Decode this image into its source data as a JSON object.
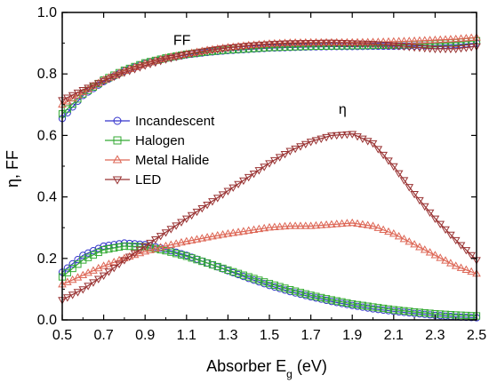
{
  "chart_data": {
    "type": "line",
    "xlabel": "Absorber E",
    "xlabel_sub": "g",
    "xlabel_unit": " (eV)",
    "ylabel": "η, FF",
    "xlim": [
      0.5,
      2.5
    ],
    "ylim": [
      0.0,
      1.0
    ],
    "xticks": [
      "0.5",
      "0.7",
      "0.9",
      "1.1",
      "1.3",
      "1.5",
      "1.7",
      "1.9",
      "2.1",
      "2.3",
      "2.5"
    ],
    "yticks": [
      "0.0",
      "0.2",
      "0.4",
      "0.6",
      "0.8",
      "1.0"
    ],
    "grid": false,
    "legend_position": "left",
    "annotations": [
      {
        "text": "FF",
        "x": 0.95,
        "y": 0.9
      },
      {
        "text": "η",
        "x": 1.8,
        "y": 0.65
      }
    ],
    "x": [
      0.5,
      0.6,
      0.7,
      0.8,
      0.9,
      1.0,
      1.1,
      1.2,
      1.3,
      1.4,
      1.5,
      1.6,
      1.7,
      1.8,
      1.9,
      2.0,
      2.1,
      2.2,
      2.3,
      2.4,
      2.5
    ],
    "series": [
      {
        "name": "Incandescent",
        "marker": "circle",
        "color": "#3333cc",
        "group": "FF",
        "values": [
          0.655,
          0.73,
          0.775,
          0.81,
          0.835,
          0.85,
          0.862,
          0.87,
          0.876,
          0.88,
          0.884,
          0.886,
          0.888,
          0.889,
          0.889,
          0.89,
          0.89,
          0.891,
          0.892,
          0.895,
          0.9
        ]
      },
      {
        "name": "Halogen",
        "marker": "square",
        "color": "#33aa33",
        "group": "FF",
        "values": [
          0.67,
          0.735,
          0.78,
          0.812,
          0.836,
          0.852,
          0.864,
          0.872,
          0.878,
          0.882,
          0.886,
          0.888,
          0.89,
          0.891,
          0.892,
          0.893,
          0.894,
          0.896,
          0.898,
          0.902,
          0.908
        ]
      },
      {
        "name": "Metal Halide",
        "marker": "triangle-up",
        "color": "#dd6655",
        "group": "FF",
        "values": [
          0.7,
          0.74,
          0.78,
          0.81,
          0.833,
          0.852,
          0.865,
          0.877,
          0.886,
          0.893,
          0.898,
          0.901,
          0.902,
          0.902,
          0.902,
          0.903,
          0.905,
          0.907,
          0.91,
          0.913,
          0.918
        ]
      },
      {
        "name": "LED",
        "marker": "triangle-down",
        "color": "#993333",
        "group": "FF",
        "values": [
          0.715,
          0.748,
          0.778,
          0.805,
          0.828,
          0.848,
          0.864,
          0.876,
          0.885,
          0.892,
          0.897,
          0.9,
          0.901,
          0.902,
          0.9,
          0.898,
          0.893,
          0.887,
          0.882,
          0.882,
          0.89
        ]
      },
      {
        "name": "Incandescent",
        "marker": "circle",
        "color": "#3333cc",
        "group": "eta",
        "values": [
          0.155,
          0.21,
          0.24,
          0.25,
          0.245,
          0.23,
          0.21,
          0.185,
          0.16,
          0.135,
          0.112,
          0.092,
          0.075,
          0.06,
          0.047,
          0.036,
          0.028,
          0.021,
          0.015,
          0.01,
          0.007
        ]
      },
      {
        "name": "Halogen",
        "marker": "square",
        "color": "#33aa33",
        "group": "eta",
        "values": [
          0.14,
          0.195,
          0.228,
          0.24,
          0.238,
          0.225,
          0.207,
          0.185,
          0.162,
          0.14,
          0.118,
          0.098,
          0.08,
          0.065,
          0.052,
          0.042,
          0.033,
          0.026,
          0.02,
          0.016,
          0.013
        ]
      },
      {
        "name": "Metal Halide",
        "marker": "triangle-up",
        "color": "#dd6655",
        "group": "eta",
        "values": [
          0.115,
          0.145,
          0.175,
          0.2,
          0.222,
          0.24,
          0.255,
          0.268,
          0.28,
          0.29,
          0.3,
          0.305,
          0.305,
          0.31,
          0.315,
          0.305,
          0.28,
          0.245,
          0.21,
          0.175,
          0.15
        ]
      },
      {
        "name": "LED",
        "marker": "triangle-down",
        "color": "#993333",
        "group": "eta",
        "values": [
          0.065,
          0.1,
          0.145,
          0.195,
          0.24,
          0.285,
          0.33,
          0.375,
          0.42,
          0.465,
          0.51,
          0.55,
          0.58,
          0.6,
          0.605,
          0.575,
          0.5,
          0.41,
          0.33,
          0.26,
          0.195
        ]
      }
    ],
    "legend": [
      {
        "name": "Incandescent",
        "marker": "circle",
        "color": "#3333cc"
      },
      {
        "name": "Halogen",
        "marker": "square",
        "color": "#33aa33"
      },
      {
        "name": "Metal Halide",
        "marker": "triangle-up",
        "color": "#dd6655"
      },
      {
        "name": "LED",
        "marker": "triangle-down",
        "color": "#993333"
      }
    ]
  }
}
